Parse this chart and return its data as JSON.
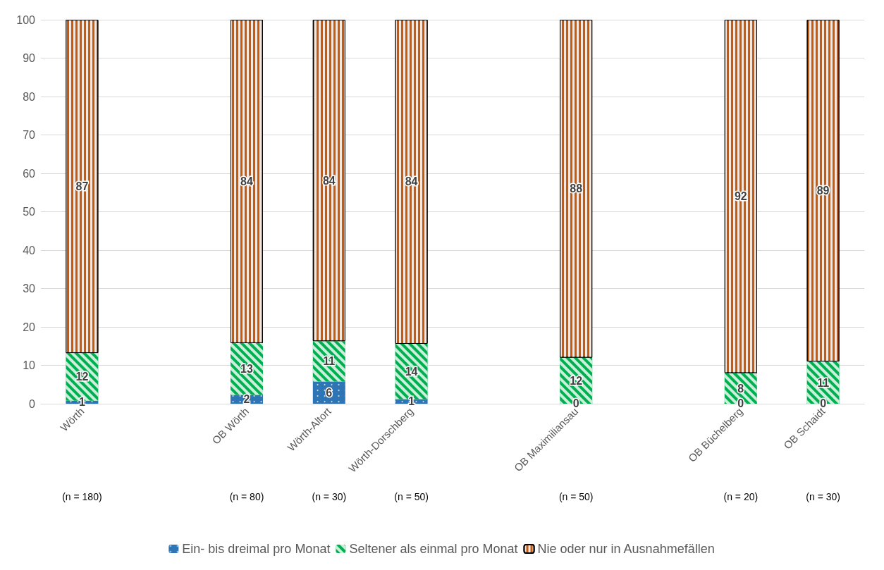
{
  "chart_data": {
    "type": "bar",
    "stacked": true,
    "categories": [
      "Wörth",
      null,
      "OB Wörth",
      "Wörth-Altort",
      "Wörth-Dorschberg",
      null,
      "OB Maximiliansau",
      null,
      "OB Büchelberg",
      "OB Schaidt"
    ],
    "series": [
      {
        "name": "Ein- bis dreimal pro Monat",
        "color": "#2e75b6",
        "values": [
          0.8,
          null,
          2.3,
          5.8,
          1.2,
          null,
          0,
          null,
          0,
          0
        ],
        "value_labels": [
          "1",
          null,
          "2",
          "6",
          "1",
          null,
          "0",
          null,
          "0",
          "0"
        ]
      },
      {
        "name": "Seltener als einmal pro Monat",
        "color": "#00b050",
        "values": [
          12.4,
          null,
          13.5,
          10.5,
          14.4,
          null,
          12,
          null,
          8,
          11
        ],
        "value_labels": [
          "12",
          null,
          "13",
          "11",
          "14",
          null,
          "12",
          null,
          "8",
          "11"
        ]
      },
      {
        "name": "Nie oder nur in Ausnahmefällen",
        "color": "#c55a11",
        "values": [
          86.8,
          null,
          84.2,
          83.7,
          84.4,
          null,
          88,
          null,
          92,
          89
        ],
        "value_labels": [
          "87",
          null,
          "84",
          "84",
          "84",
          null,
          "88",
          null,
          "92",
          "89"
        ]
      }
    ],
    "annotations": [
      "(n = 180)",
      "(n = 80)",
      "(n = 30)",
      "(n = 50)",
      "(n = 50)",
      "(n = 20)",
      "(n = 30)"
    ],
    "ylim": [
      0,
      100
    ],
    "yticks": [
      0,
      10,
      20,
      30,
      40,
      50,
      60,
      70,
      80,
      90,
      100
    ],
    "grid": "y",
    "legend": "bottom"
  }
}
